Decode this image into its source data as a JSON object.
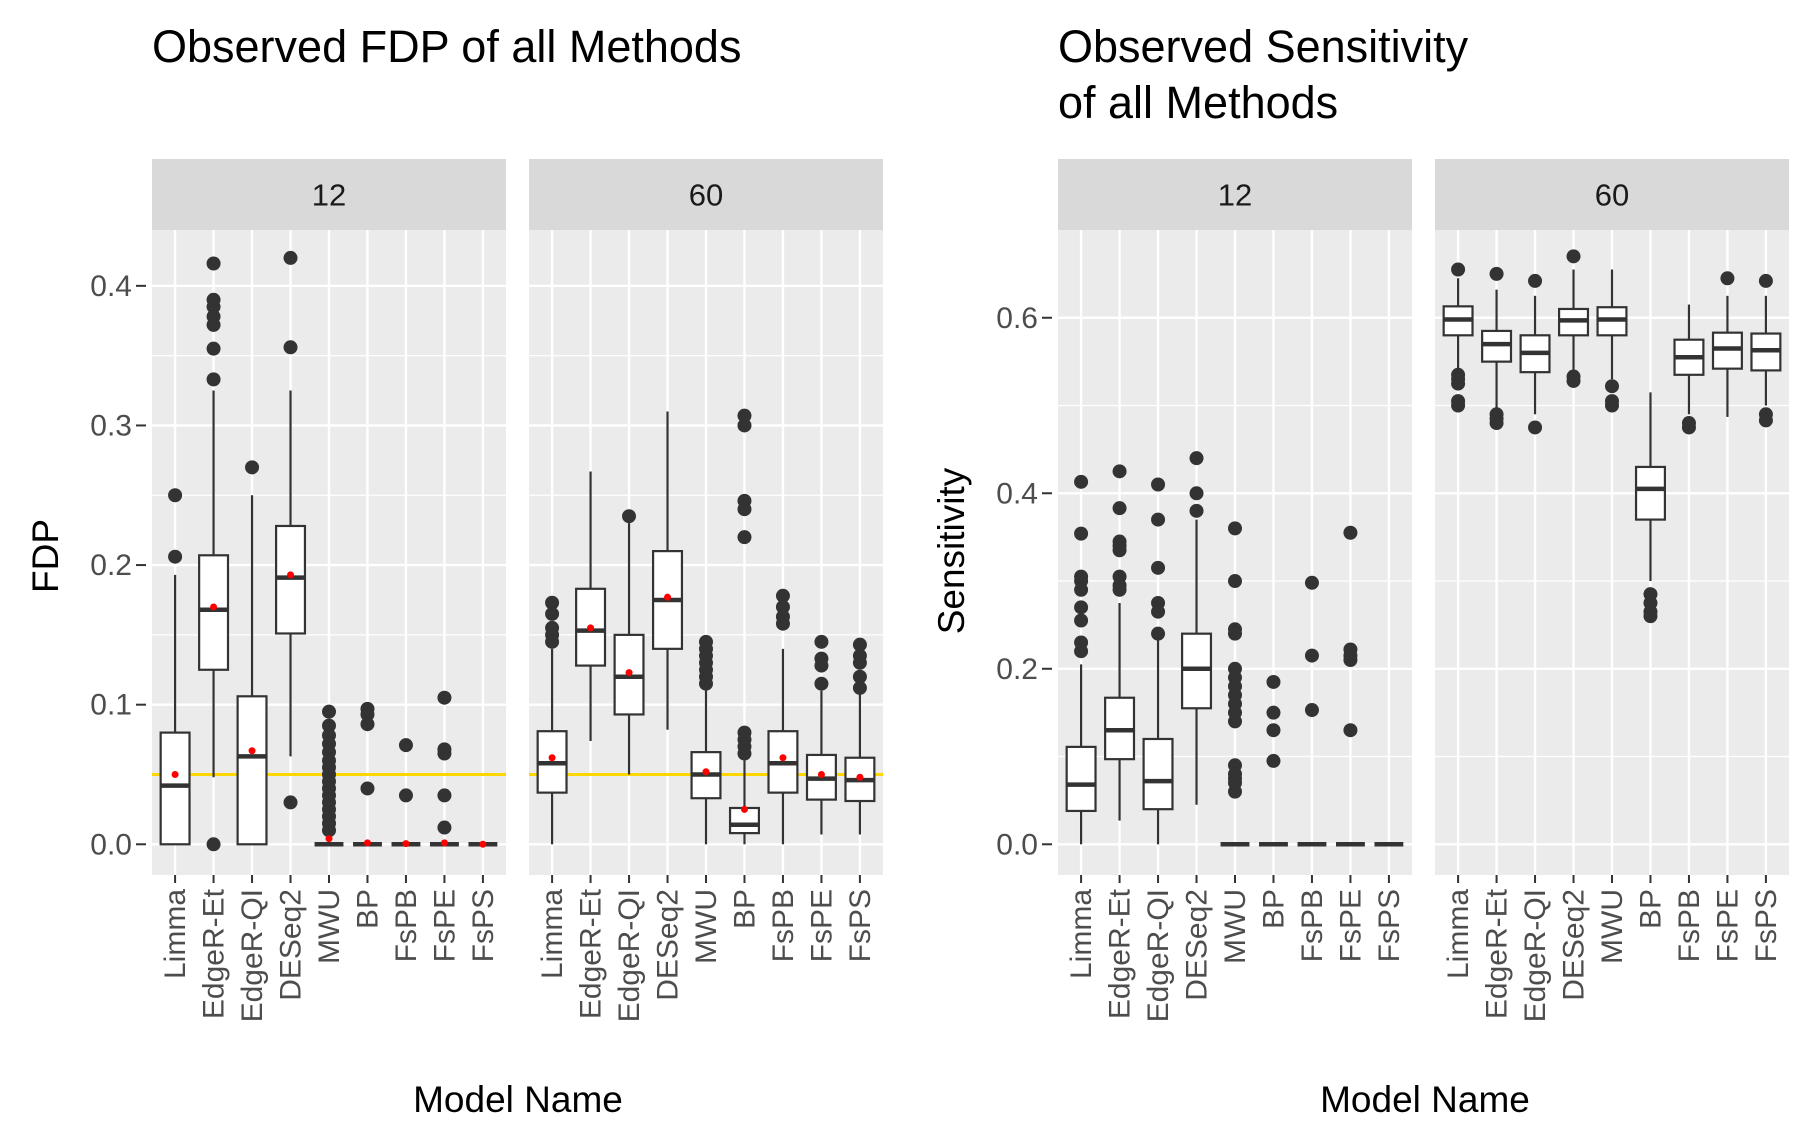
{
  "chart_data": [
    {
      "type": "boxplot",
      "title": "Observed FDP of all Methods",
      "xlabel": "Model Name",
      "ylabel": "FDP",
      "ylim": [
        -0.022,
        0.44
      ],
      "y_ticks": [
        "0.0",
        "0.1",
        "0.2",
        "0.3",
        "0.4"
      ],
      "y_tick_values": [
        0,
        0.1,
        0.2,
        0.3,
        0.4
      ],
      "grid": true,
      "reference_line": {
        "value": 0.05,
        "color": "#FFD700"
      },
      "mean_marker_color": "#FF0000",
      "categories": [
        "Limma",
        "EdgeR-Et",
        "EdgeR-QI",
        "DESeq2",
        "MWU",
        "BP",
        "FsPB",
        "FsPE",
        "FsPS"
      ],
      "facets": [
        {
          "label": "12",
          "boxes": [
            {
              "low": 0,
              "q1": 0,
              "median": 0.042,
              "q3": 0.08,
              "high": 0.193,
              "mean": 0.05,
              "outliers": [
                0.25,
                0.206
              ]
            },
            {
              "low": 0.048,
              "q1": 0.125,
              "median": 0.168,
              "q3": 0.207,
              "high": 0.325,
              "mean": 0.17,
              "outliers": [
                0.416,
                0.39,
                0.385,
                0.378,
                0.372,
                0.355,
                0.333,
                0
              ]
            },
            {
              "low": 0,
              "q1": 0,
              "median": 0.063,
              "q3": 0.106,
              "high": 0.25,
              "mean": 0.067,
              "outliers": [
                0.27
              ]
            },
            {
              "low": 0.063,
              "q1": 0.151,
              "median": 0.191,
              "q3": 0.228,
              "high": 0.325,
              "mean": 0.193,
              "outliers": [
                0.42,
                0.356,
                0.03
              ]
            },
            {
              "low": 0,
              "q1": 0,
              "median": 0,
              "q3": 0,
              "high": 0,
              "mean": 0.004,
              "outliers": [
                0.095,
                0.085,
                0.078,
                0.072,
                0.066,
                0.06,
                0.055,
                0.05,
                0.045,
                0.04,
                0.035,
                0.03,
                0.025,
                0.02,
                0.015,
                0.01
              ]
            },
            {
              "low": 0,
              "q1": 0,
              "median": 0,
              "q3": 0,
              "high": 0,
              "mean": 0.001,
              "outliers": [
                0.097,
                0.093,
                0.086,
                0.04
              ]
            },
            {
              "low": 0,
              "q1": 0,
              "median": 0,
              "q3": 0,
              "high": 0,
              "mean": 0.0005,
              "outliers": [
                0.071,
                0.035
              ]
            },
            {
              "low": 0,
              "q1": 0,
              "median": 0,
              "q3": 0,
              "high": 0,
              "mean": 0.001,
              "outliers": [
                0.105,
                0.068,
                0.065,
                0.035,
                0.012
              ]
            },
            {
              "low": 0,
              "q1": 0,
              "median": 0,
              "q3": 0,
              "high": 0,
              "mean": 0,
              "outliers": []
            }
          ]
        },
        {
          "label": "60",
          "boxes": [
            {
              "low": 0,
              "q1": 0.037,
              "median": 0.058,
              "q3": 0.081,
              "high": 0.14,
              "mean": 0.062,
              "outliers": [
                0.173,
                0.165,
                0.155,
                0.15,
                0.145
              ]
            },
            {
              "low": 0.074,
              "q1": 0.128,
              "median": 0.153,
              "q3": 0.183,
              "high": 0.267,
              "mean": 0.155,
              "outliers": []
            },
            {
              "low": 0.05,
              "q1": 0.093,
              "median": 0.12,
              "q3": 0.15,
              "high": 0.23,
              "mean": 0.123,
              "outliers": [
                0.235
              ]
            },
            {
              "low": 0.082,
              "q1": 0.14,
              "median": 0.175,
              "q3": 0.21,
              "high": 0.31,
              "mean": 0.177,
              "outliers": []
            },
            {
              "low": 0,
              "q1": 0.033,
              "median": 0.05,
              "q3": 0.066,
              "high": 0.114,
              "mean": 0.052,
              "outliers": [
                0.145,
                0.14,
                0.135,
                0.13,
                0.125,
                0.12,
                0.115
              ]
            },
            {
              "low": 0,
              "q1": 0.008,
              "median": 0.014,
              "q3": 0.026,
              "high": 0.06,
              "mean": 0.025,
              "outliers": [
                0.307,
                0.3,
                0.246,
                0.24,
                0.22,
                0.08,
                0.075,
                0.07,
                0.065
              ]
            },
            {
              "low": 0,
              "q1": 0.037,
              "median": 0.058,
              "q3": 0.081,
              "high": 0.14,
              "mean": 0.062,
              "outliers": [
                0.178,
                0.17,
                0.163,
                0.158
              ]
            },
            {
              "low": 0.007,
              "q1": 0.032,
              "median": 0.047,
              "q3": 0.064,
              "high": 0.11,
              "mean": 0.05,
              "outliers": [
                0.145,
                0.133,
                0.128,
                0.115
              ]
            },
            {
              "low": 0.007,
              "q1": 0.031,
              "median": 0.046,
              "q3": 0.062,
              "high": 0.108,
              "mean": 0.048,
              "outliers": [
                0.143,
                0.135,
                0.13,
                0.12,
                0.112
              ]
            }
          ]
        }
      ]
    },
    {
      "type": "boxplot",
      "title": "Observed Sensitivity\nof all Methods",
      "xlabel": "Model Name",
      "ylabel": "Sensitivity",
      "ylim": [
        -0.035,
        0.7
      ],
      "y_ticks": [
        "0.0",
        "0.2",
        "0.4",
        "0.6"
      ],
      "y_tick_values": [
        0,
        0.2,
        0.4,
        0.6
      ],
      "grid": true,
      "categories": [
        "Limma",
        "EdgeR-Et",
        "EdgeR-QI",
        "DESeq2",
        "MWU",
        "BP",
        "FsPB",
        "FsPE",
        "FsPS"
      ],
      "facets": [
        {
          "label": "12",
          "boxes": [
            {
              "low": 0,
              "q1": 0.038,
              "median": 0.068,
              "q3": 0.111,
              "high": 0.205,
              "outliers": [
                0.413,
                0.354,
                0.305,
                0.3,
                0.29,
                0.27,
                0.255,
                0.23,
                0.22
              ]
            },
            {
              "low": 0.027,
              "q1": 0.097,
              "median": 0.13,
              "q3": 0.167,
              "high": 0.275,
              "outliers": [
                0.425,
                0.383,
                0.345,
                0.34,
                0.335,
                0.305,
                0.295,
                0.29
              ]
            },
            {
              "low": 0,
              "q1": 0.04,
              "median": 0.072,
              "q3": 0.12,
              "high": 0.235,
              "outliers": [
                0.41,
                0.37,
                0.315,
                0.275,
                0.265,
                0.24
              ]
            },
            {
              "low": 0.045,
              "q1": 0.155,
              "median": 0.2,
              "q3": 0.24,
              "high": 0.37,
              "outliers": [
                0.44,
                0.4,
                0.38
              ]
            },
            {
              "low": 0,
              "q1": 0,
              "median": 0,
              "q3": 0,
              "high": 0,
              "outliers": [
                0.36,
                0.3,
                0.245,
                0.24,
                0.2,
                0.19,
                0.18,
                0.17,
                0.16,
                0.15,
                0.14,
                0.09,
                0.08,
                0.075,
                0.07,
                0.06
              ]
            },
            {
              "low": 0,
              "q1": 0,
              "median": 0,
              "q3": 0,
              "high": 0,
              "outliers": [
                0.185,
                0.15,
                0.13,
                0.095
              ]
            },
            {
              "low": 0,
              "q1": 0,
              "median": 0,
              "q3": 0,
              "high": 0,
              "outliers": [
                0.298,
                0.215,
                0.153
              ]
            },
            {
              "low": 0,
              "q1": 0,
              "median": 0,
              "q3": 0,
              "high": 0,
              "outliers": [
                0.355,
                0.222,
                0.215,
                0.21,
                0.13
              ]
            },
            {
              "low": 0,
              "q1": 0,
              "median": 0,
              "q3": 0,
              "high": 0,
              "outliers": []
            }
          ]
        },
        {
          "label": "60",
          "boxes": [
            {
              "low": 0.54,
              "q1": 0.58,
              "median": 0.598,
              "q3": 0.613,
              "high": 0.645,
              "outliers": [
                0.655,
                0.535,
                0.53,
                0.525,
                0.505,
                0.5
              ]
            },
            {
              "low": 0.495,
              "q1": 0.55,
              "median": 0.57,
              "q3": 0.585,
              "high": 0.632,
              "outliers": [
                0.65,
                0.49,
                0.485,
                0.48
              ]
            },
            {
              "low": 0.49,
              "q1": 0.538,
              "median": 0.56,
              "q3": 0.58,
              "high": 0.625,
              "outliers": [
                0.642,
                0.475
              ]
            },
            {
              "low": 0.54,
              "q1": 0.58,
              "median": 0.597,
              "q3": 0.61,
              "high": 0.655,
              "outliers": [
                0.67,
                0.533,
                0.528
              ]
            },
            {
              "low": 0.53,
              "q1": 0.58,
              "median": 0.598,
              "q3": 0.612,
              "high": 0.655,
              "outliers": [
                0.522,
                0.505,
                0.5
              ]
            },
            {
              "low": 0.3,
              "q1": 0.37,
              "median": 0.405,
              "q3": 0.43,
              "high": 0.515,
              "outliers": [
                0.285,
                0.275,
                0.265,
                0.26
              ]
            },
            {
              "low": 0.49,
              "q1": 0.535,
              "median": 0.555,
              "q3": 0.575,
              "high": 0.615,
              "outliers": [
                0.48,
                0.475
              ]
            },
            {
              "low": 0.487,
              "q1": 0.542,
              "median": 0.565,
              "q3": 0.583,
              "high": 0.625,
              "outliers": [
                0.645
              ]
            },
            {
              "low": 0.5,
              "q1": 0.54,
              "median": 0.563,
              "q3": 0.582,
              "high": 0.625,
              "outliers": [
                0.642,
                0.49,
                0.483
              ]
            }
          ]
        }
      ]
    }
  ]
}
